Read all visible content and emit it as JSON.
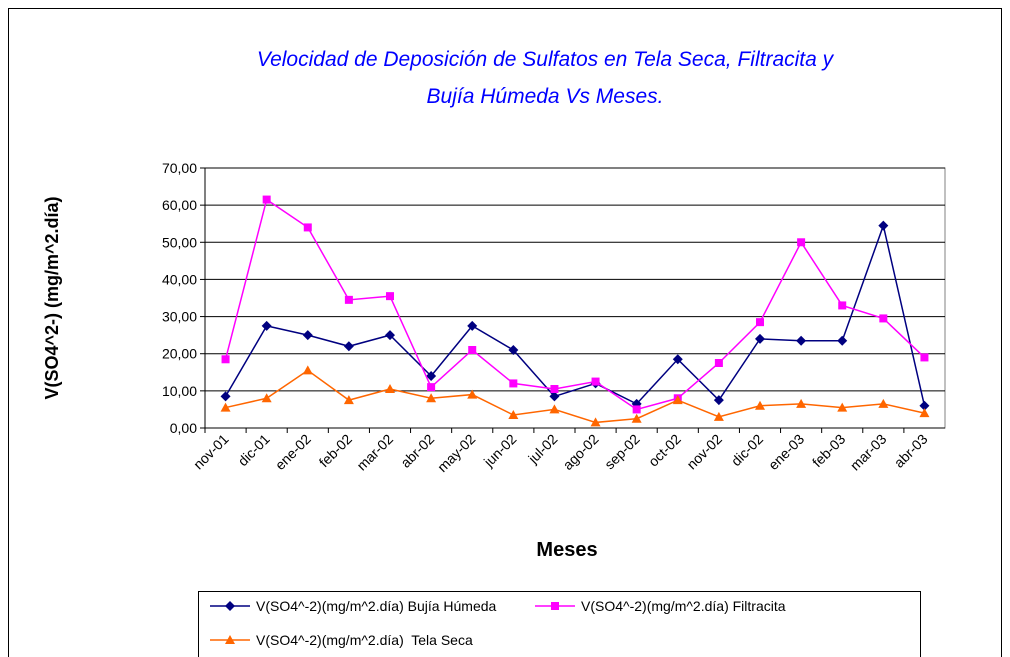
{
  "chart_data": {
    "type": "line",
    "title": [
      "Velocidad de Deposición de Sulfatos en Tela Seca, Filtracita y",
      "Bujía Húmeda Vs Meses."
    ],
    "x_label": "Meses",
    "y_label": "V(SO4^2-) (mg/m^2.día)",
    "categories": [
      "nov-01",
      "dic-01",
      "ene-02",
      "feb-02",
      "mar-02",
      "abr-02",
      "may-02",
      "jun-02",
      "jul-02",
      "ago-02",
      "sep-02",
      "oct-02",
      "nov-02",
      "dic-02",
      "ene-03",
      "feb-03",
      "mar-03",
      "abr-03"
    ],
    "series": [
      {
        "name": "V(SO4^-2)(mg/m^2.día) Bujía Húmeda",
        "color": "#000080",
        "marker": "diamond",
        "values": [
          8.5,
          27.5,
          25,
          22,
          25,
          14,
          27.5,
          21,
          8.5,
          12,
          6.5,
          18.5,
          7.5,
          24,
          23.5,
          23.5,
          54.5,
          6
        ]
      },
      {
        "name": "V(SO4^-2)(mg/m^2.día) Filtracita",
        "color": "#ff00ff",
        "marker": "square",
        "values": [
          18.5,
          61.5,
          54,
          34.5,
          35.5,
          11,
          21,
          12,
          10.5,
          12.5,
          5,
          8,
          17.5,
          28.5,
          50,
          33,
          29.5,
          19
        ]
      },
      {
        "name": "V(SO4^-2)(mg/m^2.día)  Tela Seca",
        "color": "#ff6600",
        "marker": "triangle",
        "values": [
          5.5,
          8,
          15.5,
          7.5,
          10.5,
          8,
          9,
          3.5,
          5,
          1.5,
          2.5,
          7.5,
          3,
          6,
          6.5,
          5.5,
          6.5,
          4
        ]
      }
    ],
    "ylim": [
      0,
      70
    ],
    "yticks": [
      {
        "value": 0,
        "label": "0,00"
      },
      {
        "value": 10,
        "label": "10,00"
      },
      {
        "value": 20,
        "label": "20,00"
      },
      {
        "value": 30,
        "label": "30,00"
      },
      {
        "value": 40,
        "label": "40,00"
      },
      {
        "value": 50,
        "label": "50,00"
      },
      {
        "value": 60,
        "label": "60,00"
      },
      {
        "value": 70,
        "label": "70,00"
      }
    ],
    "grid": true,
    "legend": "bottom"
  }
}
